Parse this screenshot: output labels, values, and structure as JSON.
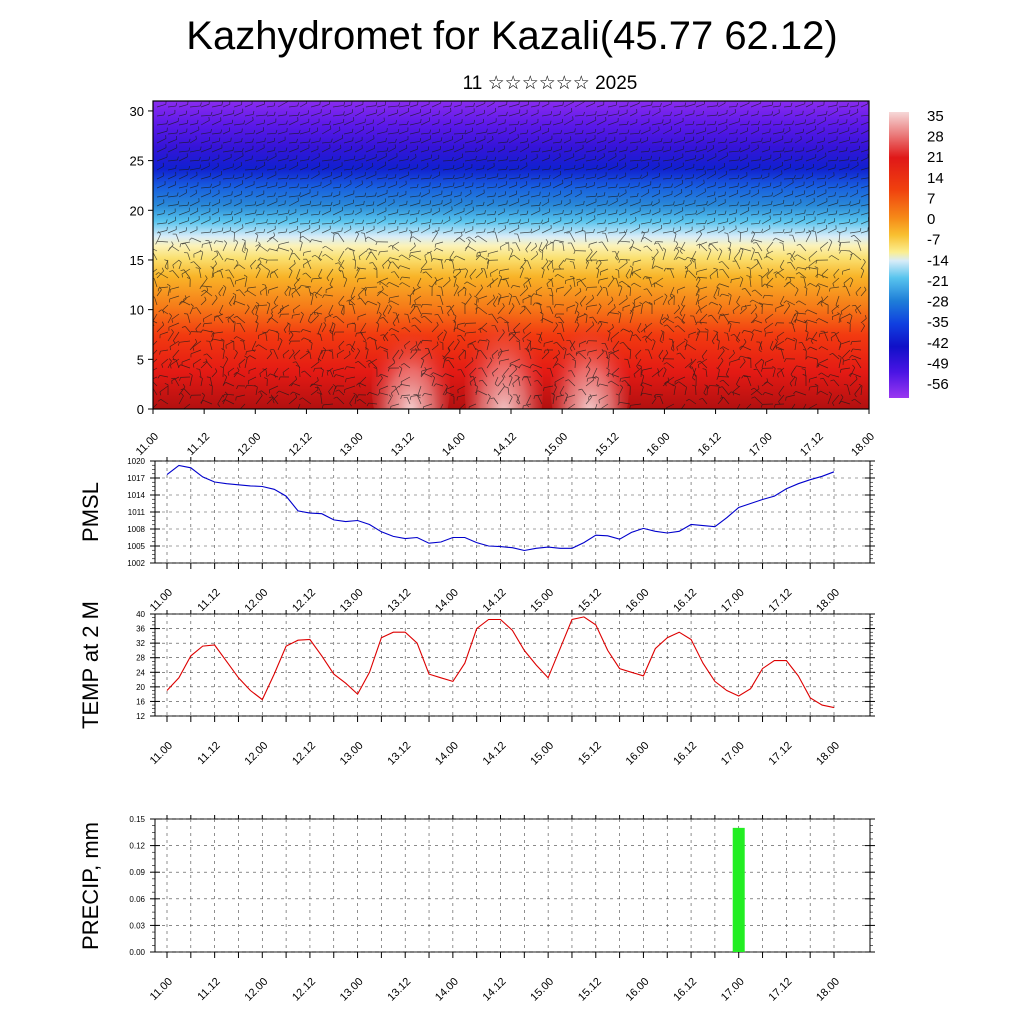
{
  "title": "Kazhydromet for Kazali(45.77 62.12)",
  "subtitle": "11 ☆☆☆☆☆☆ 2025",
  "chart_data": [
    {
      "type": "heatmap",
      "name": "cross-section",
      "ylim": [
        0,
        31
      ],
      "y_ticks": [
        "0",
        "5",
        "10",
        "15",
        "20",
        "25",
        "30"
      ],
      "x_ticks": [
        "11.00",
        "11.12",
        "12.00",
        "12.12",
        "13.00",
        "13.12",
        "14.00",
        "14.12",
        "15.00",
        "15.12",
        "16.00",
        "16.12",
        "17.00",
        "17.12",
        "18.00"
      ],
      "colorbar": {
        "labels": [
          "35",
          "28",
          "21",
          "14",
          "7",
          "0",
          "-7",
          "-14",
          "-21",
          "-28",
          "-35",
          "-42",
          "-49",
          "-56"
        ],
        "colors": [
          "#f4c8c8",
          "#ec8a8a",
          "#e02020",
          "#f24a10",
          "#f8a020",
          "#fad040",
          "#fbee9a",
          "#d8ecf8",
          "#5ac8f0",
          "#1e8ad8",
          "#1040e0",
          "#2010d0",
          "#5010e8",
          "#9030f0"
        ]
      },
      "annotation": "wind barbs overlay"
    },
    {
      "type": "line",
      "ylabel": "PMSL",
      "ylim": [
        1002,
        1020
      ],
      "y_ticks": [
        "1002",
        "1005",
        "1008",
        "1011",
        "1014",
        "1017",
        "1020"
      ],
      "x_ticks": [
        "11.00",
        "11.12",
        "12.00",
        "12.12",
        "13.00",
        "13.12",
        "14.00",
        "14.12",
        "15.00",
        "15.12",
        "16.00",
        "16.12",
        "17.00",
        "17.12",
        "18.00"
      ],
      "color": "#0000cc",
      "x": [
        0,
        3,
        6,
        9,
        12,
        15,
        18,
        21,
        24,
        27,
        30,
        33,
        36,
        39,
        42,
        45,
        48,
        51,
        54,
        57,
        60,
        63,
        66,
        69,
        72,
        75,
        78,
        81,
        84,
        87,
        90,
        93,
        96,
        99,
        102,
        105,
        108,
        111,
        114,
        117,
        120,
        123,
        126,
        129,
        132,
        135,
        138,
        141,
        144,
        147,
        150,
        153,
        156,
        159,
        162,
        165,
        168
      ],
      "values": [
        1017.6,
        1019.2,
        1018.8,
        1017.2,
        1016.3,
        1016,
        1015.8,
        1015.6,
        1015.5,
        1015,
        1013.8,
        1011.2,
        1010.8,
        1010.7,
        1009.6,
        1009.3,
        1009.5,
        1008.8,
        1007.5,
        1006.7,
        1006.3,
        1006.5,
        1005.5,
        1005.7,
        1006.5,
        1006.5,
        1005.6,
        1005,
        1004.9,
        1004.7,
        1004.2,
        1004.6,
        1004.8,
        1004.6,
        1004.6,
        1005.6,
        1006.9,
        1006.8,
        1006.2,
        1007.4,
        1008.1,
        1007.6,
        1007.3,
        1007.6,
        1008.8,
        1008.6,
        1008.4,
        1010,
        1011.8,
        1012.5,
        1013.2,
        1013.8,
        1015.1,
        1016,
        1016.7,
        1017.3,
        1018.1
      ]
    },
    {
      "type": "line",
      "ylabel": "TEMP at 2 M",
      "ylim": [
        12,
        40
      ],
      "y_ticks": [
        "12",
        "16",
        "20",
        "24",
        "28",
        "32",
        "36",
        "40"
      ],
      "x_ticks": [
        "11.00",
        "11.12",
        "12.00",
        "12.12",
        "13.00",
        "13.12",
        "14.00",
        "14.12",
        "15.00",
        "15.12",
        "16.00",
        "16.12",
        "17.00",
        "17.12",
        "18.00"
      ],
      "color": "#dd0000",
      "x": [
        0,
        3,
        6,
        9,
        12,
        15,
        18,
        21,
        24,
        27,
        30,
        33,
        36,
        39,
        42,
        45,
        48,
        51,
        54,
        57,
        60,
        63,
        66,
        69,
        72,
        75,
        78,
        81,
        84,
        87,
        90,
        93,
        96,
        99,
        102,
        105,
        108,
        111,
        114,
        117,
        120,
        123,
        126,
        129,
        132,
        135,
        138,
        141,
        144,
        147,
        150,
        153,
        156,
        159,
        162,
        165,
        168
      ],
      "values": [
        19,
        22.5,
        28.5,
        31.2,
        31.5,
        27,
        22.5,
        19,
        16.5,
        23.5,
        31.2,
        32.8,
        33,
        28.5,
        23.5,
        21,
        18,
        24,
        33.5,
        35,
        35,
        32,
        23.5,
        22.5,
        21.5,
        26.5,
        36,
        38.5,
        38.5,
        35.5,
        30,
        26,
        22.5,
        30.5,
        38.5,
        39.2,
        37,
        30,
        25,
        24,
        23,
        30.5,
        33.5,
        35,
        33,
        26.5,
        21.5,
        19,
        17.5,
        19.5,
        25,
        27.2,
        27.2,
        23,
        17,
        15,
        14.3
      ]
    },
    {
      "type": "bar",
      "ylabel": "PRECIP, mm",
      "ylim": [
        0,
        0.15
      ],
      "y_ticks": [
        "0.00",
        "0.03",
        "0.06",
        "0.09",
        "0.12",
        "0.15"
      ],
      "x_ticks": [
        "11.00",
        "11.12",
        "12.00",
        "12.12",
        "13.00",
        "13.12",
        "14.00",
        "14.12",
        "15.00",
        "15.12",
        "16.00",
        "16.12",
        "17.00",
        "17.12",
        "18.00"
      ],
      "color": "#22ee22",
      "bars": [
        {
          "x": 144,
          "value": 0.14
        }
      ]
    }
  ]
}
